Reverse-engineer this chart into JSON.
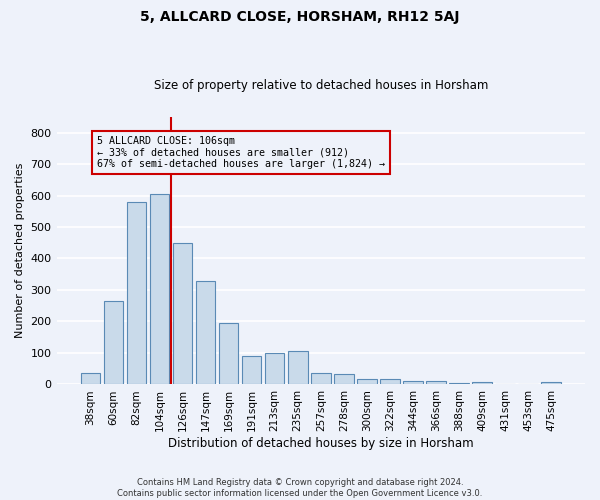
{
  "title": "5, ALLCARD CLOSE, HORSHAM, RH12 5AJ",
  "subtitle": "Size of property relative to detached houses in Horsham",
  "xlabel": "Distribution of detached houses by size in Horsham",
  "ylabel": "Number of detached properties",
  "categories": [
    "38sqm",
    "60sqm",
    "82sqm",
    "104sqm",
    "126sqm",
    "147sqm",
    "169sqm",
    "191sqm",
    "213sqm",
    "235sqm",
    "257sqm",
    "278sqm",
    "300sqm",
    "322sqm",
    "344sqm",
    "366sqm",
    "388sqm",
    "409sqm",
    "431sqm",
    "453sqm",
    "475sqm"
  ],
  "values": [
    35,
    265,
    580,
    605,
    450,
    330,
    195,
    90,
    100,
    105,
    35,
    32,
    18,
    18,
    12,
    10,
    5,
    8,
    0,
    0,
    7
  ],
  "bar_color": "#c9daea",
  "bar_edge_color": "#5a8ab5",
  "red_line_x": 3.5,
  "annotation_line1": "5 ALLCARD CLOSE: 106sqm",
  "annotation_line2": "← 33% of detached houses are smaller (912)",
  "annotation_line3": "67% of semi-detached houses are larger (1,824) →",
  "annotation_box_color": "#cc0000",
  "ylim": [
    0,
    850
  ],
  "yticks": [
    0,
    100,
    200,
    300,
    400,
    500,
    600,
    700,
    800
  ],
  "footer_line1": "Contains HM Land Registry data © Crown copyright and database right 2024.",
  "footer_line2": "Contains public sector information licensed under the Open Government Licence v3.0.",
  "background_color": "#eef2fa",
  "grid_color": "#ffffff"
}
